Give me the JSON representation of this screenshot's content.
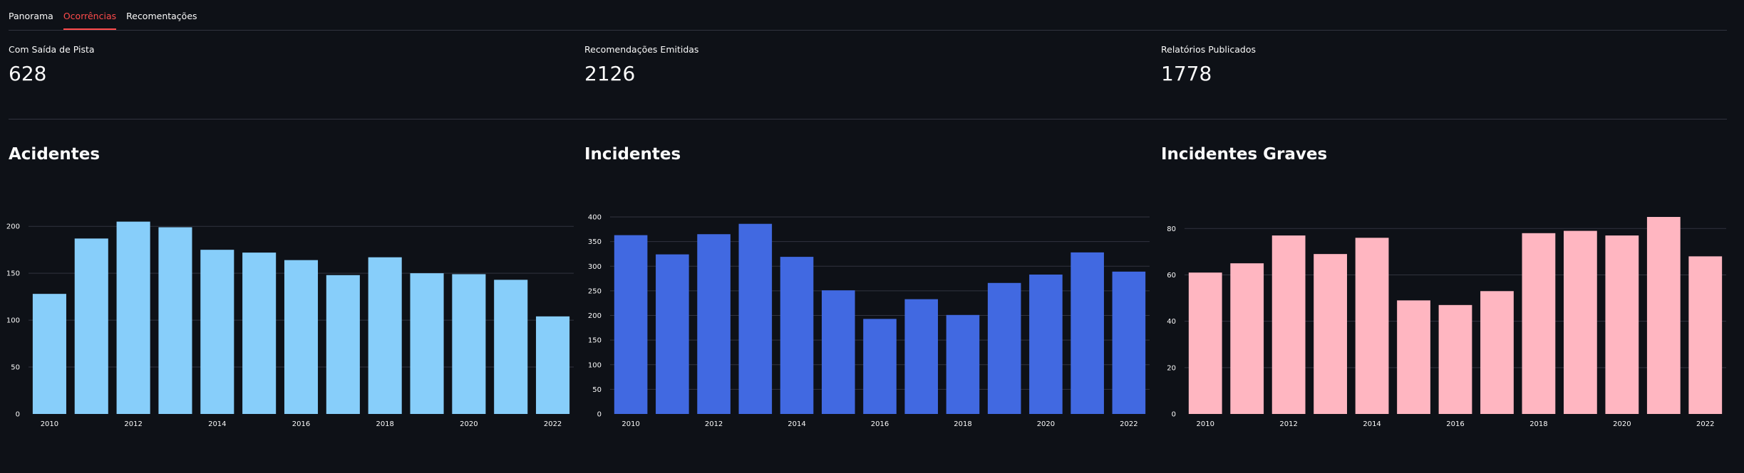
{
  "tabs": [
    {
      "label": "Panorama",
      "active": false
    },
    {
      "label": "Ocorrências",
      "active": true
    },
    {
      "label": "Recomentações",
      "active": false
    }
  ],
  "metrics": [
    {
      "label": "Com Saída de Pista",
      "value": "628"
    },
    {
      "label": "Recomendações Emitidas",
      "value": "2126"
    },
    {
      "label": "Relatórios Publicados",
      "value": "1778"
    }
  ],
  "colors": {
    "background": "#0e1117",
    "accent": "#ff4b4b",
    "grid": "#31333f"
  },
  "chart_data": [
    {
      "type": "bar",
      "title": "Acidentes",
      "x": [
        2010,
        2011,
        2012,
        2013,
        2014,
        2015,
        2016,
        2017,
        2018,
        2019,
        2020,
        2021,
        2022
      ],
      "x_tick_labels": [
        "2010",
        "2012",
        "2014",
        "2016",
        "2018",
        "2020",
        "2022"
      ],
      "values": [
        128,
        187,
        205,
        199,
        175,
        172,
        164,
        148,
        167,
        150,
        149,
        143,
        104
      ],
      "yticks": [
        0,
        50,
        100,
        150,
        200
      ],
      "ylim": [
        0,
        210
      ],
      "color": "#87cefa",
      "grid": true
    },
    {
      "type": "bar",
      "title": "Incidentes",
      "x": [
        2010,
        2011,
        2012,
        2013,
        2014,
        2015,
        2016,
        2017,
        2018,
        2019,
        2020,
        2021,
        2022
      ],
      "x_tick_labels": [
        "2010",
        "2012",
        "2014",
        "2016",
        "2018",
        "2020",
        "2022"
      ],
      "values": [
        363,
        324,
        365,
        386,
        319,
        251,
        193,
        233,
        201,
        266,
        283,
        328,
        289
      ],
      "yticks": [
        0,
        50,
        100,
        150,
        200,
        250,
        300,
        350,
        400
      ],
      "ylim": [
        0,
        400
      ],
      "color": "#4169e1",
      "grid": true
    },
    {
      "type": "bar",
      "title": "Incidentes Graves",
      "x": [
        2010,
        2011,
        2012,
        2013,
        2014,
        2015,
        2016,
        2017,
        2018,
        2019,
        2020,
        2021,
        2022
      ],
      "x_tick_labels": [
        "2010",
        "2012",
        "2014",
        "2016",
        "2018",
        "2020",
        "2022"
      ],
      "values": [
        61,
        65,
        77,
        69,
        76,
        49,
        47,
        53,
        78,
        79,
        77,
        85,
        68
      ],
      "yticks": [
        0,
        20,
        40,
        60,
        80
      ],
      "ylim": [
        0,
        85
      ],
      "color": "#ffb6c1",
      "grid": true
    }
  ]
}
